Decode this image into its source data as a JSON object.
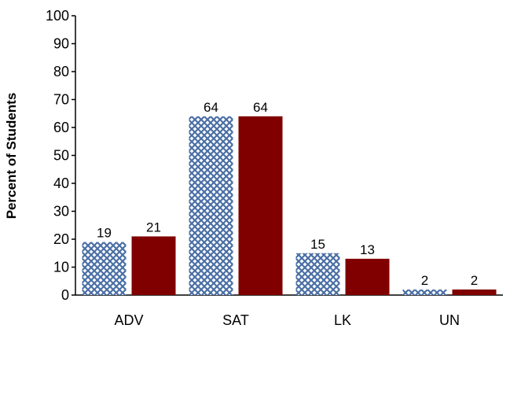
{
  "chart_data": {
    "type": "bar",
    "title": "",
    "xlabel": "",
    "ylabel": "Percent of Students",
    "ylim": [
      0,
      100
    ],
    "yticks": [
      0,
      10,
      20,
      30,
      40,
      50,
      60,
      70,
      80,
      90,
      100
    ],
    "categories": [
      "ADV",
      "SAT",
      "LK",
      "UN"
    ],
    "series": [
      {
        "values": [
          19,
          64,
          15,
          2
        ],
        "color": "#4a6fa5",
        "fill_style": "crosshatch"
      },
      {
        "values": [
          21,
          64,
          13,
          2
        ],
        "color": "#800000",
        "fill_style": "solid"
      }
    ],
    "grid": false,
    "legend": "none"
  }
}
